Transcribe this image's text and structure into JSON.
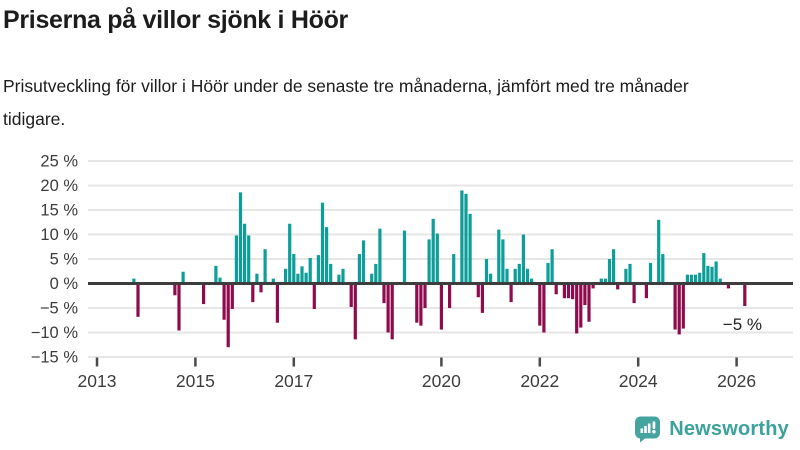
{
  "header": {
    "title": "Priserna på villor sjönk i Höör",
    "subtitle": "Prisutveckling för villor i Höör under de senaste tre månaderna, jämfört med tre månader tidigare."
  },
  "footer": {
    "brand": "Newsworthy"
  },
  "chart_data": {
    "type": "bar",
    "title": "Priserna på villor sjönk i Höör",
    "xlabel": "",
    "ylabel": "",
    "unit": "%",
    "ylim": [
      -15,
      25
    ],
    "grid": true,
    "legend": false,
    "annotation": "−5 %",
    "colors": {
      "positive": "#0d9e99",
      "negative": "#8e0c4d",
      "zero_line": "#3d3d3d",
      "gridline": "#e6e6e6",
      "axis_text": "#3c3c3c",
      "logo_teal": "#45a4a0"
    },
    "y_ticks": [
      {
        "value": 25,
        "label": "25 %"
      },
      {
        "value": 20,
        "label": "20 %"
      },
      {
        "value": 15,
        "label": "15 %"
      },
      {
        "value": 10,
        "label": "10 %"
      },
      {
        "value": 5,
        "label": "5 %"
      },
      {
        "value": 0,
        "label": "0 %"
      },
      {
        "value": -5,
        "label": "−5 %"
      },
      {
        "value": -10,
        "label": "−10 %"
      },
      {
        "value": -15,
        "label": "−15 %"
      }
    ],
    "x_ticks": [
      {
        "year": 2013,
        "label": "2013"
      },
      {
        "year": 2015,
        "label": "2015"
      },
      {
        "year": 2017,
        "label": "2017"
      },
      {
        "year": 2020,
        "label": "2020"
      },
      {
        "year": 2022,
        "label": "2022"
      },
      {
        "year": 2024,
        "label": "2024"
      },
      {
        "year": 2026,
        "label": "2026"
      }
    ],
    "series": [
      {
        "date": "2013-10",
        "value": 1.0
      },
      {
        "date": "2013-11",
        "value": -6.8
      },
      {
        "date": "2014-08",
        "value": -2.4
      },
      {
        "date": "2014-09",
        "value": -9.6
      },
      {
        "date": "2014-10",
        "value": 2.4
      },
      {
        "date": "2015-03",
        "value": -4.2
      },
      {
        "date": "2015-06",
        "value": 3.6
      },
      {
        "date": "2015-07",
        "value": 1.2
      },
      {
        "date": "2015-08",
        "value": -7.4
      },
      {
        "date": "2015-09",
        "value": -13.0
      },
      {
        "date": "2015-10",
        "value": -5.2
      },
      {
        "date": "2015-11",
        "value": 9.8
      },
      {
        "date": "2015-12",
        "value": 18.6
      },
      {
        "date": "2016-01",
        "value": 12.2
      },
      {
        "date": "2016-02",
        "value": 9.8
      },
      {
        "date": "2016-03",
        "value": -3.8
      },
      {
        "date": "2016-04",
        "value": 2.0
      },
      {
        "date": "2016-05",
        "value": -1.8
      },
      {
        "date": "2016-06",
        "value": 7.0
      },
      {
        "date": "2016-08",
        "value": 1.0
      },
      {
        "date": "2016-09",
        "value": -8.0
      },
      {
        "date": "2016-11",
        "value": 3.0
      },
      {
        "date": "2016-12",
        "value": 12.2
      },
      {
        "date": "2017-01",
        "value": 6.0
      },
      {
        "date": "2017-02",
        "value": 2.0
      },
      {
        "date": "2017-03",
        "value": 3.5
      },
      {
        "date": "2017-04",
        "value": 2.2
      },
      {
        "date": "2017-05",
        "value": 5.2
      },
      {
        "date": "2017-06",
        "value": -5.2
      },
      {
        "date": "2017-07",
        "value": 5.8
      },
      {
        "date": "2017-08",
        "value": 16.5
      },
      {
        "date": "2017-09",
        "value": 11.5
      },
      {
        "date": "2017-10",
        "value": 4.0
      },
      {
        "date": "2017-12",
        "value": 1.8
      },
      {
        "date": "2018-01",
        "value": 3.0
      },
      {
        "date": "2018-03",
        "value": -4.8
      },
      {
        "date": "2018-04",
        "value": -11.4
      },
      {
        "date": "2018-05",
        "value": 6.0
      },
      {
        "date": "2018-06",
        "value": 8.8
      },
      {
        "date": "2018-08",
        "value": 2.0
      },
      {
        "date": "2018-09",
        "value": 4.0
      },
      {
        "date": "2018-10",
        "value": 11.2
      },
      {
        "date": "2018-11",
        "value": -4.0
      },
      {
        "date": "2018-12",
        "value": -10.0
      },
      {
        "date": "2019-01",
        "value": -11.4
      },
      {
        "date": "2019-04",
        "value": 10.8
      },
      {
        "date": "2019-07",
        "value": -8.0
      },
      {
        "date": "2019-08",
        "value": -8.6
      },
      {
        "date": "2019-09",
        "value": -5.0
      },
      {
        "date": "2019-10",
        "value": 9.0
      },
      {
        "date": "2019-11",
        "value": 13.2
      },
      {
        "date": "2019-12",
        "value": 10.2
      },
      {
        "date": "2020-01",
        "value": -9.4
      },
      {
        "date": "2020-03",
        "value": -5.0
      },
      {
        "date": "2020-04",
        "value": 6.0
      },
      {
        "date": "2020-06",
        "value": 19.0
      },
      {
        "date": "2020-07",
        "value": 18.3
      },
      {
        "date": "2020-08",
        "value": 14.2
      },
      {
        "date": "2020-10",
        "value": -2.8
      },
      {
        "date": "2020-11",
        "value": -6.0
      },
      {
        "date": "2020-12",
        "value": 5.0
      },
      {
        "date": "2021-01",
        "value": 2.0
      },
      {
        "date": "2021-03",
        "value": 11.0
      },
      {
        "date": "2021-04",
        "value": 9.0
      },
      {
        "date": "2021-05",
        "value": 3.0
      },
      {
        "date": "2021-06",
        "value": -3.8
      },
      {
        "date": "2021-07",
        "value": 3.0
      },
      {
        "date": "2021-08",
        "value": 4.0
      },
      {
        "date": "2021-09",
        "value": 10.0
      },
      {
        "date": "2021-10",
        "value": 3.0
      },
      {
        "date": "2021-11",
        "value": 1.0
      },
      {
        "date": "2022-01",
        "value": -8.6
      },
      {
        "date": "2022-02",
        "value": -10.0
      },
      {
        "date": "2022-03",
        "value": 4.2
      },
      {
        "date": "2022-04",
        "value": 7.0
      },
      {
        "date": "2022-05",
        "value": -2.2
      },
      {
        "date": "2022-07",
        "value": -3.0
      },
      {
        "date": "2022-08",
        "value": -3.0
      },
      {
        "date": "2022-09",
        "value": -3.2
      },
      {
        "date": "2022-10",
        "value": -10.2
      },
      {
        "date": "2022-11",
        "value": -9.0
      },
      {
        "date": "2022-12",
        "value": -4.4
      },
      {
        "date": "2023-01",
        "value": -7.8
      },
      {
        "date": "2023-02",
        "value": -1.0
      },
      {
        "date": "2023-04",
        "value": 1.0
      },
      {
        "date": "2023-05",
        "value": 1.0
      },
      {
        "date": "2023-06",
        "value": 5.0
      },
      {
        "date": "2023-07",
        "value": 7.0
      },
      {
        "date": "2023-08",
        "value": -1.2
      },
      {
        "date": "2023-10",
        "value": 3.0
      },
      {
        "date": "2023-11",
        "value": 4.0
      },
      {
        "date": "2023-12",
        "value": -4.0
      },
      {
        "date": "2024-03",
        "value": -3.0
      },
      {
        "date": "2024-04",
        "value": 4.2
      },
      {
        "date": "2024-06",
        "value": 13.0
      },
      {
        "date": "2024-07",
        "value": 6.0
      },
      {
        "date": "2024-10",
        "value": -9.4
      },
      {
        "date": "2024-11",
        "value": -10.4
      },
      {
        "date": "2024-12",
        "value": -9.2
      },
      {
        "date": "2025-01",
        "value": 1.8
      },
      {
        "date": "2025-02",
        "value": 1.8
      },
      {
        "date": "2025-03",
        "value": 1.8
      },
      {
        "date": "2025-04",
        "value": 2.2
      },
      {
        "date": "2025-05",
        "value": 6.2
      },
      {
        "date": "2025-06",
        "value": 3.6
      },
      {
        "date": "2025-07",
        "value": 3.4
      },
      {
        "date": "2025-08",
        "value": 4.5
      },
      {
        "date": "2025-09",
        "value": 1.0
      },
      {
        "date": "2025-11",
        "value": -1.0
      },
      {
        "date": "2026-03",
        "value": -4.6
      }
    ]
  }
}
